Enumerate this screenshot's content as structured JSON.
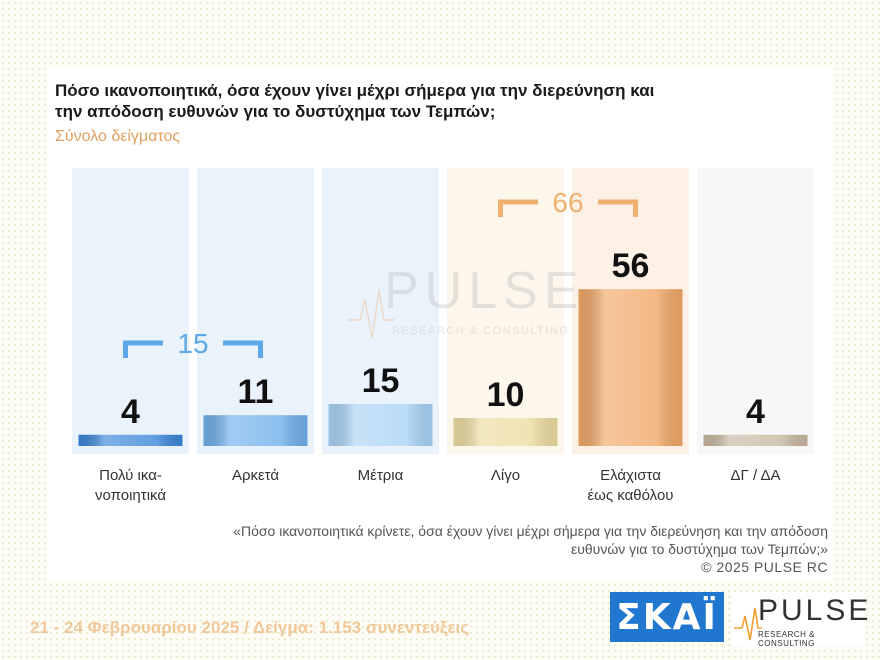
{
  "chart_data": {
    "type": "bar",
    "title": "Πόσο ικανοποιητικά, όσα έχουν γίνει μέχρι σήμερα για την διερεύνηση και την απόδοση ευθυνών για το δυστύχημα των Τεμπών;",
    "subtitle": "Σύνολο δείγματος",
    "categories": [
      [
        "Πολύ ικα-",
        "νοποιητικά"
      ],
      [
        "Αρκετά"
      ],
      [
        "Μέτρια"
      ],
      [
        "Λίγο"
      ],
      [
        "Ελάχιστα",
        "έως καθόλου"
      ],
      [
        "ΔΓ / ΔΑ"
      ]
    ],
    "values": [
      4,
      11,
      15,
      10,
      56,
      4
    ],
    "value_labels": [
      "4",
      "11",
      "15",
      "10",
      "56",
      "4"
    ],
    "bar_colors": [
      "#3a86d8",
      "#6fb0ea",
      "#a9d3f5",
      "#ecdca0",
      "#f0a868",
      "#c8b8a2"
    ],
    "column_bg_colors": [
      "#eaf3fc",
      "#eaf3fc",
      "#eaf3fc",
      "#fdf6ea",
      "#fdf1e6",
      "#f7f7f7"
    ],
    "groups": [
      {
        "label": "15",
        "from": 0,
        "to": 1,
        "color": "#5fa8e8"
      },
      {
        "label": "66",
        "from": 3,
        "to": 4,
        "color": "#f0b070"
      }
    ]
  },
  "watermark": {
    "brand": "PULSE",
    "tagline": "RESEARCH & CONSULTING"
  },
  "footnote": "«Πόσο ικανοποιητικά κρίνετε, όσα έχουν γίνει μέχρι σήμερα για την διερεύνηση και την απόδοση ευθυνών για το δυστύχημα των Τεμπών;»",
  "copyright": "©  2025  PULSE RC",
  "bottom_info": "21 - 24 Φεβρουαρίου 2025  /  Δείγμα:  1.153 συνεντεύξεις",
  "logos": {
    "skai": "ΣΚΑΪ",
    "pulse": "PULSE",
    "pulse_tagline": "RESEARCH & CONSULTING"
  }
}
